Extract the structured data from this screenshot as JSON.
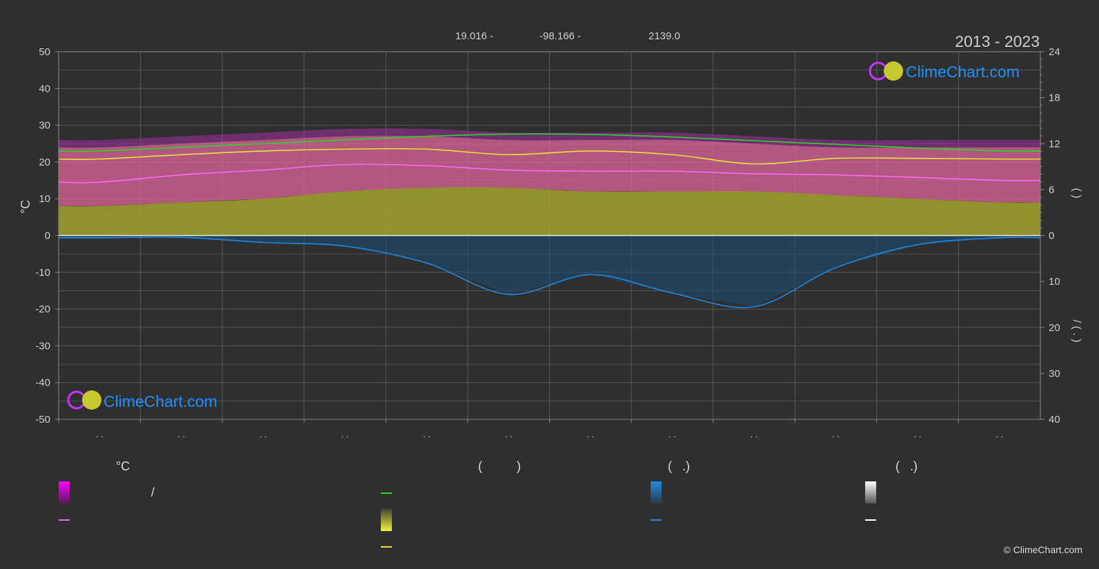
{
  "header": {
    "lat": "19.016 -",
    "lon": "-98.166 -",
    "elev": "2139.0",
    "years": "2013 - 2023"
  },
  "brand": {
    "name": "ClimeChart.com",
    "copyright": "© ClimeChart.com"
  },
  "colors": {
    "background": "#2f2f2f",
    "daylight": "#22dd22",
    "sunshine": "#e6e632",
    "mean_temp": "#ff66ff",
    "temp_band": "#e0669e",
    "sun_band": "#9c9c30",
    "precip": "#1e88e5",
    "brand_text": "#1e90ff"
  },
  "legend": {
    "col1_header": "°C",
    "col1_slash": "/",
    "col2_header": "(          )",
    "col3_header": "(   .)",
    "col4_header": "(   .)"
  },
  "chart_data": {
    "type": "area",
    "x_tick_labels": [
      ". .",
      ". .",
      ". .",
      ". .",
      ". .",
      ". .",
      ". .",
      ". .",
      ". .",
      ". .",
      ". .",
      ". ."
    ],
    "left_axis": {
      "label": "°C",
      "ylim": [
        -50,
        50
      ],
      "ticks": [
        50,
        40,
        30,
        20,
        10,
        0,
        -10,
        -20,
        -30,
        -40,
        -50
      ]
    },
    "right_axis_top": {
      "ticks": [
        24,
        18,
        12,
        6,
        0
      ],
      "range": [
        0,
        24
      ],
      "label": "(      )"
    },
    "right_axis_bottom": {
      "ticks": [
        0,
        10,
        20,
        30,
        40
      ],
      "range": [
        0,
        40
      ],
      "label": "/        ( . )"
    },
    "grid": true,
    "series": [
      {
        "key": "daylight",
        "values": [
          23.0,
          24.0,
          25.0,
          26.0,
          27.0,
          27.6,
          27.5,
          26.8,
          25.8,
          24.8,
          23.8,
          23.0
        ]
      },
      {
        "key": "sunshine",
        "values": [
          20.8,
          22.0,
          23.0,
          23.5,
          23.5,
          22.0,
          23.0,
          22.0,
          19.5,
          21.0,
          21.0,
          20.8
        ]
      },
      {
        "key": "mean_temp",
        "values": [
          14.5,
          16.5,
          17.8,
          19.3,
          19.0,
          17.8,
          17.5,
          17.5,
          16.8,
          16.5,
          15.8,
          15.0
        ]
      },
      {
        "key": "precip_mm",
        "values": [
          0.5,
          0.4,
          1.5,
          2.3,
          6.0,
          12.8,
          8.5,
          12.5,
          15.5,
          7.0,
          2.0,
          0.5
        ]
      }
    ],
    "temp_band_upper": [
      24,
      25,
      26,
      27,
      27,
      26,
      26,
      26,
      25,
      24,
      24,
      24
    ],
    "sun_band_top": [
      8,
      9,
      10,
      12,
      13,
      13,
      12,
      12,
      12,
      11,
      10,
      9
    ]
  }
}
